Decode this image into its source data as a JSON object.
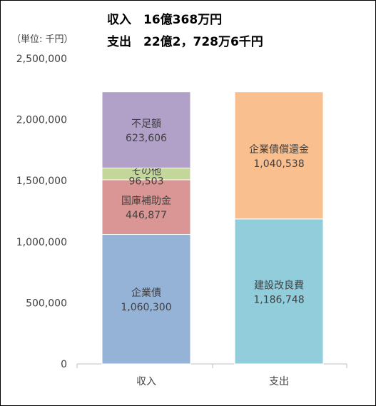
{
  "header": {
    "line1": "収入　16億368万円",
    "line2": "支出　22億2，728万6千円",
    "unit": "（単位: 千円）"
  },
  "chart_data": {
    "type": "bar",
    "stacked": true,
    "categories": [
      "収入",
      "支出"
    ],
    "ylim": [
      0,
      2500000
    ],
    "yticks": [
      "0",
      "500,000",
      "1,000,000",
      "1,500,000",
      "2,000,000",
      "2,500,000"
    ],
    "grid": false,
    "legend": "none",
    "stacks": [
      {
        "category": "収入",
        "segments": [
          {
            "name": "企業債",
            "value": 1060300,
            "label": "1,060,300",
            "color": "#95b3d7"
          },
          {
            "name": "国庫補助金",
            "value": 446877,
            "label": "446,877",
            "color": "#da9694"
          },
          {
            "name": "その他",
            "value": 96503,
            "label": "96,503",
            "color": "#c4d79b"
          },
          {
            "name": "不足額",
            "value": 623606,
            "label": "623,606",
            "color": "#b1a0c7"
          }
        ]
      },
      {
        "category": "支出",
        "segments": [
          {
            "name": "建設改良費",
            "value": 1186748,
            "label": "1,186,748",
            "color": "#92cddc"
          },
          {
            "name": "企業債償還金",
            "value": 1040538,
            "label": "1,040,538",
            "color": "#fabf8f"
          }
        ]
      }
    ]
  }
}
